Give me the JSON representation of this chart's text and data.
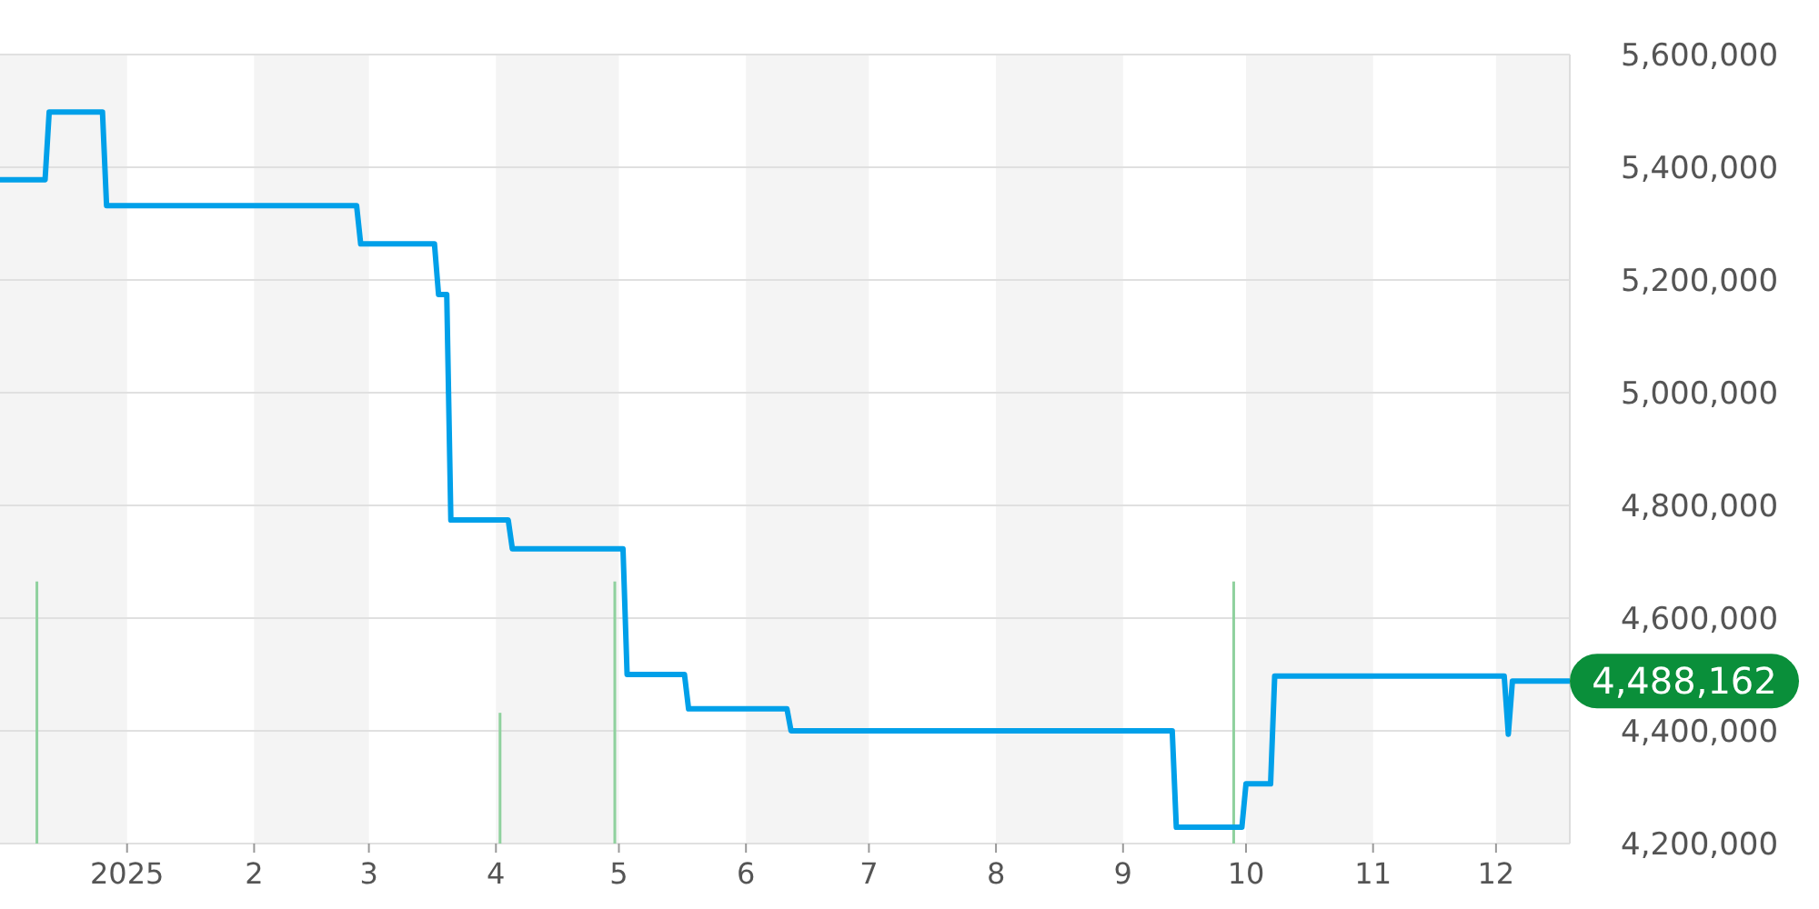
{
  "chart_data": {
    "type": "line",
    "x": [
      "2024-12-01",
      "2024-12-12",
      "2024-12-13",
      "2024-12-26",
      "2024-12-27",
      "2025-02-26",
      "2025-02-27",
      "2025-03-17",
      "2025-03-18",
      "2025-03-20",
      "2025-03-21",
      "2025-04-04",
      "2025-04-05",
      "2025-05-02",
      "2025-05-03",
      "2025-05-17",
      "2025-05-18",
      "2025-06-11",
      "2025-06-12",
      "2025-09-13",
      "2025-09-14",
      "2025-09-30",
      "2025-10-01",
      "2025-10-07",
      "2025-10-08",
      "2025-12-03",
      "2025-12-04",
      "2025-12-05",
      "2025-12-19"
    ],
    "series": [
      {
        "color": "#00a0e9",
        "values": [
          5378000,
          5378000,
          5498000,
          5498000,
          5332000,
          5332000,
          5264000,
          5264000,
          5174000,
          5174000,
          4774000,
          4774000,
          4723000,
          4723000,
          4500000,
          4500000,
          4439000,
          4439000,
          4400000,
          4400000,
          4229000,
          4229000,
          4306000,
          4306000,
          4497000,
          4497000,
          4394000,
          4488162,
          4488162
        ]
      },
      {
        "type": "bar",
        "color": "#8fd19e",
        "x": [
          "2024-12-10",
          "2025-04-02",
          "2025-04-30",
          "2025-09-28"
        ],
        "values": [
          4665000,
          4432000,
          4665000,
          4665000
        ]
      }
    ],
    "xlim": [
      "2024-12-01",
      "2025-12-19"
    ],
    "xticks": [
      {
        "value": "2025-01-01",
        "label": "2025"
      },
      {
        "value": "2025-02-01",
        "label": "2"
      },
      {
        "value": "2025-03-01",
        "label": "3"
      },
      {
        "value": "2025-04-01",
        "label": "4"
      },
      {
        "value": "2025-05-01",
        "label": "5"
      },
      {
        "value": "2025-06-01",
        "label": "6"
      },
      {
        "value": "2025-07-01",
        "label": "7"
      },
      {
        "value": "2025-08-01",
        "label": "8"
      },
      {
        "value": "2025-09-01",
        "label": "9"
      },
      {
        "value": "2025-10-01",
        "label": "10"
      },
      {
        "value": "2025-11-01",
        "label": "11"
      },
      {
        "value": "2025-12-01",
        "label": "12"
      }
    ],
    "ylim": [
      4200000,
      5600000
    ],
    "yticks": [
      {
        "value": 4200000,
        "label": "4,200,000"
      },
      {
        "value": 4400000,
        "label": "4,400,000"
      },
      {
        "value": 4600000,
        "label": "4,600,000"
      },
      {
        "value": 4800000,
        "label": "4,800,000"
      },
      {
        "value": 5000000,
        "label": "5,000,000"
      },
      {
        "value": 5200000,
        "label": "5,200,000"
      },
      {
        "value": 5400000,
        "label": "5,400,000"
      },
      {
        "value": 5600000,
        "label": "5,600,000"
      }
    ],
    "bands": [
      {
        "axis": "x",
        "from": "2024-12-01",
        "to": "2025-01-01",
        "color": "#f4f4f4"
      },
      {
        "axis": "x",
        "from": "2025-02-01",
        "to": "2025-03-01",
        "color": "#f4f4f4"
      },
      {
        "axis": "x",
        "from": "2025-04-01",
        "to": "2025-05-01",
        "color": "#f4f4f4"
      },
      {
        "axis": "x",
        "from": "2025-06-01",
        "to": "2025-07-01",
        "color": "#f4f4f4"
      },
      {
        "axis": "x",
        "from": "2025-08-01",
        "to": "2025-09-01",
        "color": "#f4f4f4"
      },
      {
        "axis": "x",
        "from": "2025-10-01",
        "to": "2025-11-01",
        "color": "#f4f4f4"
      },
      {
        "axis": "x",
        "from": "2025-12-01",
        "to": "2025-12-19",
        "color": "#f4f4f4"
      }
    ],
    "annotations": [
      {
        "text": "4,488,162",
        "x": "2025-12-19",
        "y": 4488162
      }
    ],
    "grid": "y"
  }
}
